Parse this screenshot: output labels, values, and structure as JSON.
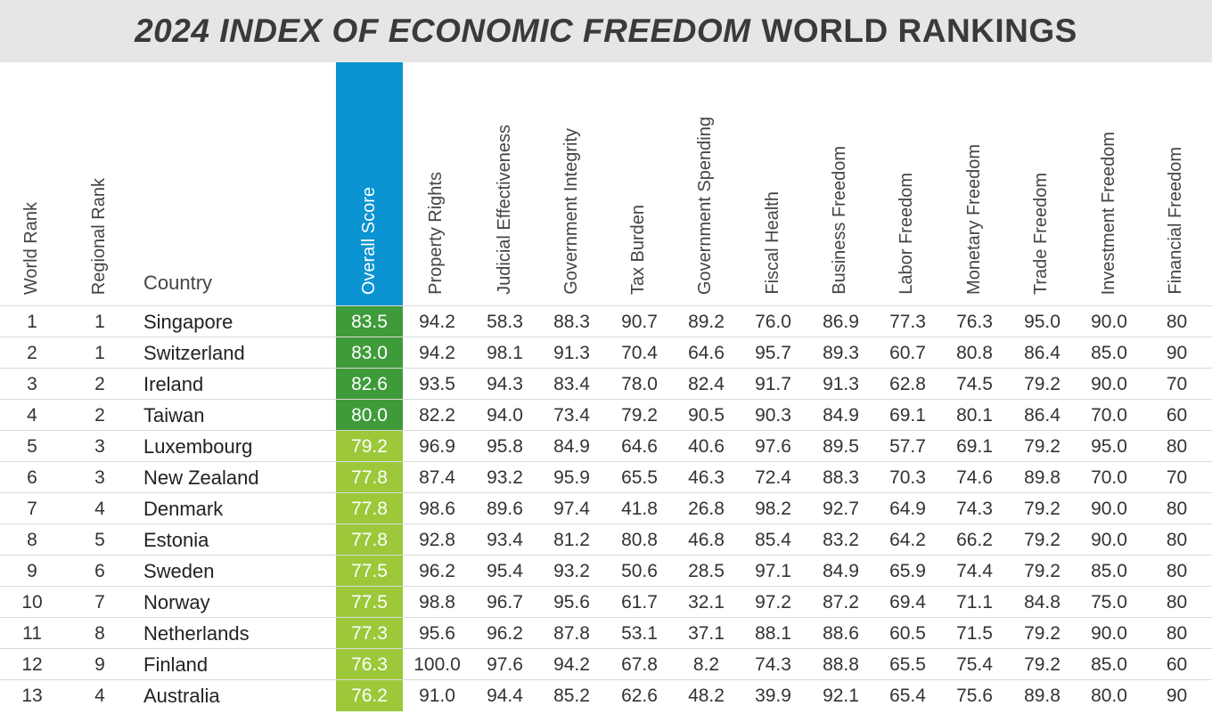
{
  "title": {
    "emphasis": "2024 INDEX OF ECONOMIC FREEDOM",
    "rest": "WORLD RANKINGS"
  },
  "headers": {
    "world_rank": "World Rank",
    "regional_rank": "Regional Rank",
    "country": "Country",
    "overall_score": "Overall Score",
    "property_rights": "Property Rights",
    "judicial_effectiveness": "Judicial Effectiveness",
    "government_integrity": "Government Integrity",
    "tax_burden": "Tax Burden",
    "government_spending": "Government Spending",
    "fiscal_health": "Fiscal Health",
    "business_freedom": "Business Freedom",
    "labor_freedom": "Labor Freedom",
    "monetary_freedom": "Monetary Freedom",
    "trade_freedom": "Trade Freedom",
    "investment_freedom": "Investment Freedom",
    "financial_freedom": "Financial Freedom"
  },
  "colors": {
    "header_blue": "#0b93d2",
    "score_dark_green": "#3f9b3a",
    "score_light_green": "#9cc83a"
  },
  "rows": [
    {
      "world_rank": "1",
      "regional_rank": "1",
      "country": "Singapore",
      "overall_score": "83.5",
      "score_band": "dark",
      "property_rights": "94.2",
      "judicial_effectiveness": "58.3",
      "government_integrity": "88.3",
      "tax_burden": "90.7",
      "government_spending": "89.2",
      "fiscal_health": "76.0",
      "business_freedom": "86.9",
      "labor_freedom": "77.3",
      "monetary_freedom": "76.3",
      "trade_freedom": "95.0",
      "investment_freedom": "90.0",
      "financial_freedom": "80"
    },
    {
      "world_rank": "2",
      "regional_rank": "1",
      "country": "Switzerland",
      "overall_score": "83.0",
      "score_band": "dark",
      "property_rights": "94.2",
      "judicial_effectiveness": "98.1",
      "government_integrity": "91.3",
      "tax_burden": "70.4",
      "government_spending": "64.6",
      "fiscal_health": "95.7",
      "business_freedom": "89.3",
      "labor_freedom": "60.7",
      "monetary_freedom": "80.8",
      "trade_freedom": "86.4",
      "investment_freedom": "85.0",
      "financial_freedom": "90"
    },
    {
      "world_rank": "3",
      "regional_rank": "2",
      "country": "Ireland",
      "overall_score": "82.6",
      "score_band": "dark",
      "property_rights": "93.5",
      "judicial_effectiveness": "94.3",
      "government_integrity": "83.4",
      "tax_burden": "78.0",
      "government_spending": "82.4",
      "fiscal_health": "91.7",
      "business_freedom": "91.3",
      "labor_freedom": "62.8",
      "monetary_freedom": "74.5",
      "trade_freedom": "79.2",
      "investment_freedom": "90.0",
      "financial_freedom": "70"
    },
    {
      "world_rank": "4",
      "regional_rank": "2",
      "country": "Taiwan",
      "overall_score": "80.0",
      "score_band": "dark",
      "property_rights": "82.2",
      "judicial_effectiveness": "94.0",
      "government_integrity": "73.4",
      "tax_burden": "79.2",
      "government_spending": "90.5",
      "fiscal_health": "90.3",
      "business_freedom": "84.9",
      "labor_freedom": "69.1",
      "monetary_freedom": "80.1",
      "trade_freedom": "86.4",
      "investment_freedom": "70.0",
      "financial_freedom": "60"
    },
    {
      "world_rank": "5",
      "regional_rank": "3",
      "country": "Luxembourg",
      "overall_score": "79.2",
      "score_band": "light",
      "property_rights": "96.9",
      "judicial_effectiveness": "95.8",
      "government_integrity": "84.9",
      "tax_burden": "64.6",
      "government_spending": "40.6",
      "fiscal_health": "97.6",
      "business_freedom": "89.5",
      "labor_freedom": "57.7",
      "monetary_freedom": "69.1",
      "trade_freedom": "79.2",
      "investment_freedom": "95.0",
      "financial_freedom": "80"
    },
    {
      "world_rank": "6",
      "regional_rank": "3",
      "country": "New Zealand",
      "overall_score": "77.8",
      "score_band": "light",
      "property_rights": "87.4",
      "judicial_effectiveness": "93.2",
      "government_integrity": "95.9",
      "tax_burden": "65.5",
      "government_spending": "46.3",
      "fiscal_health": "72.4",
      "business_freedom": "88.3",
      "labor_freedom": "70.3",
      "monetary_freedom": "74.6",
      "trade_freedom": "89.8",
      "investment_freedom": "70.0",
      "financial_freedom": "70"
    },
    {
      "world_rank": "7",
      "regional_rank": "4",
      "country": "Denmark",
      "overall_score": "77.8",
      "score_band": "light",
      "property_rights": "98.6",
      "judicial_effectiveness": "89.6",
      "government_integrity": "97.4",
      "tax_burden": "41.8",
      "government_spending": "26.8",
      "fiscal_health": "98.2",
      "business_freedom": "92.7",
      "labor_freedom": "64.9",
      "monetary_freedom": "74.3",
      "trade_freedom": "79.2",
      "investment_freedom": "90.0",
      "financial_freedom": "80"
    },
    {
      "world_rank": "8",
      "regional_rank": "5",
      "country": "Estonia",
      "overall_score": "77.8",
      "score_band": "light",
      "property_rights": "92.8",
      "judicial_effectiveness": "93.4",
      "government_integrity": "81.2",
      "tax_burden": "80.8",
      "government_spending": "46.8",
      "fiscal_health": "85.4",
      "business_freedom": "83.2",
      "labor_freedom": "64.2",
      "monetary_freedom": "66.2",
      "trade_freedom": "79.2",
      "investment_freedom": "90.0",
      "financial_freedom": "80"
    },
    {
      "world_rank": "9",
      "regional_rank": "6",
      "country": "Sweden",
      "overall_score": "77.5",
      "score_band": "light",
      "property_rights": "96.2",
      "judicial_effectiveness": "95.4",
      "government_integrity": "93.2",
      "tax_burden": "50.6",
      "government_spending": "28.5",
      "fiscal_health": "97.1",
      "business_freedom": "84.9",
      "labor_freedom": "65.9",
      "monetary_freedom": "74.4",
      "trade_freedom": "79.2",
      "investment_freedom": "85.0",
      "financial_freedom": "80"
    },
    {
      "world_rank": "10",
      "regional_rank": "7",
      "country": "Norway",
      "overall_score": "77.5",
      "score_band": "light",
      "property_rights": "98.8",
      "judicial_effectiveness": "96.7",
      "government_integrity": "95.6",
      "tax_burden": "61.7",
      "government_spending": "32.1",
      "fiscal_health": "97.2",
      "business_freedom": "87.2",
      "labor_freedom": "69.4",
      "monetary_freedom": "71.1",
      "trade_freedom": "84.8",
      "investment_freedom": "75.0",
      "financial_freedom": "80"
    },
    {
      "world_rank": "11",
      "regional_rank": "8",
      "country": "Netherlands",
      "overall_score": "77.3",
      "score_band": "light",
      "property_rights": "95.6",
      "judicial_effectiveness": "96.2",
      "government_integrity": "87.8",
      "tax_burden": "53.1",
      "government_spending": "37.1",
      "fiscal_health": "88.1",
      "business_freedom": "88.6",
      "labor_freedom": "60.5",
      "monetary_freedom": "71.5",
      "trade_freedom": "79.2",
      "investment_freedom": "90.0",
      "financial_freedom": "80"
    },
    {
      "world_rank": "12",
      "regional_rank": "9",
      "country": "Finland",
      "overall_score": "76.3",
      "score_band": "light",
      "property_rights": "100.0",
      "judicial_effectiveness": "97.6",
      "government_integrity": "94.2",
      "tax_burden": "67.8",
      "government_spending": "8.2",
      "fiscal_health": "74.3",
      "business_freedom": "88.8",
      "labor_freedom": "65.5",
      "monetary_freedom": "75.4",
      "trade_freedom": "79.2",
      "investment_freedom": "85.0",
      "financial_freedom": "60"
    },
    {
      "world_rank": "13",
      "regional_rank": "4",
      "country": "Australia",
      "overall_score": "76.2",
      "score_band": "light",
      "property_rights": "91.0",
      "judicial_effectiveness": "94.4",
      "government_integrity": "85.2",
      "tax_burden": "62.6",
      "government_spending": "48.2",
      "fiscal_health": "39.9",
      "business_freedom": "92.1",
      "labor_freedom": "65.4",
      "monetary_freedom": "75.6",
      "trade_freedom": "89.8",
      "investment_freedom": "80.0",
      "financial_freedom": "90"
    }
  ]
}
